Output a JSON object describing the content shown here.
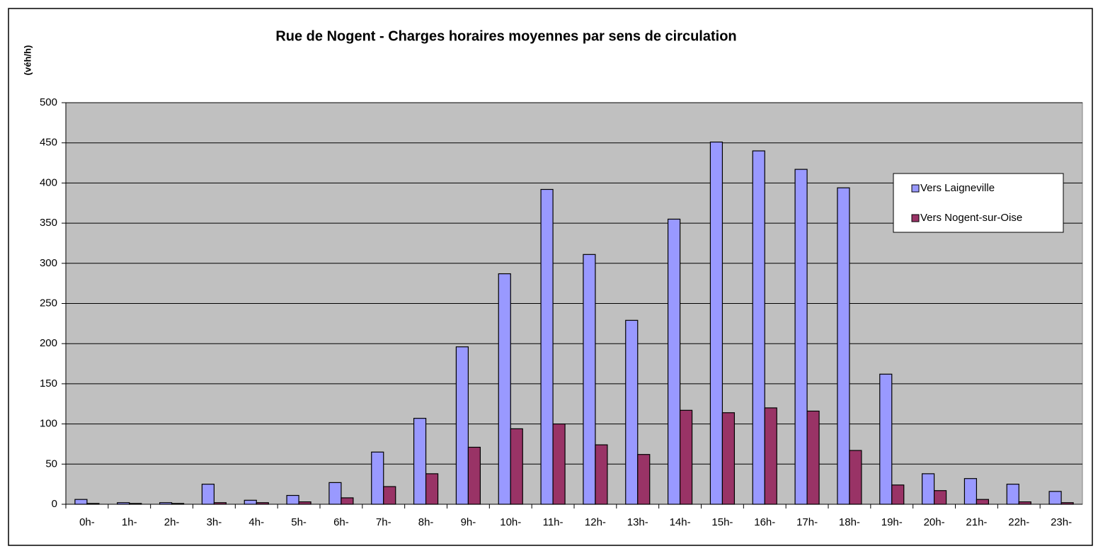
{
  "chart_data": {
    "type": "bar",
    "title": "Rue de Nogent - Charges horaires moyennes  par sens de circulation",
    "y_label": "(véh/h)",
    "categories": [
      "0h-",
      "1h-",
      "2h-",
      "3h-",
      "4h-",
      "5h-",
      "6h-",
      "7h-",
      "8h-",
      "9h-",
      "10h-",
      "11h-",
      "12h-",
      "13h-",
      "14h-",
      "15h-",
      "16h-",
      "17h-",
      "18h-",
      "19h-",
      "20h-",
      "21h-",
      "22h-",
      "23h-"
    ],
    "series": [
      {
        "name": "Vers Laigneville",
        "color": "#9999ff",
        "values": [
          6,
          2,
          2,
          25,
          5,
          11,
          27,
          65,
          107,
          196,
          287,
          392,
          311,
          229,
          355,
          451,
          440,
          417,
          394,
          162,
          38,
          32,
          25,
          16
        ]
      },
      {
        "name": "Vers Nogent-sur-Oise",
        "color": "#993366",
        "values": [
          1,
          1,
          1,
          2,
          2,
          3,
          8,
          22,
          38,
          71,
          94,
          100,
          74,
          62,
          117,
          114,
          120,
          116,
          67,
          24,
          17,
          6,
          3,
          2
        ]
      }
    ],
    "ylim": [
      0,
      500
    ],
    "yticks": [
      0,
      50,
      100,
      150,
      200,
      250,
      300,
      350,
      400,
      450,
      500
    ],
    "grid": true,
    "legend": "right",
    "plot_background": "#c0c0c0"
  }
}
